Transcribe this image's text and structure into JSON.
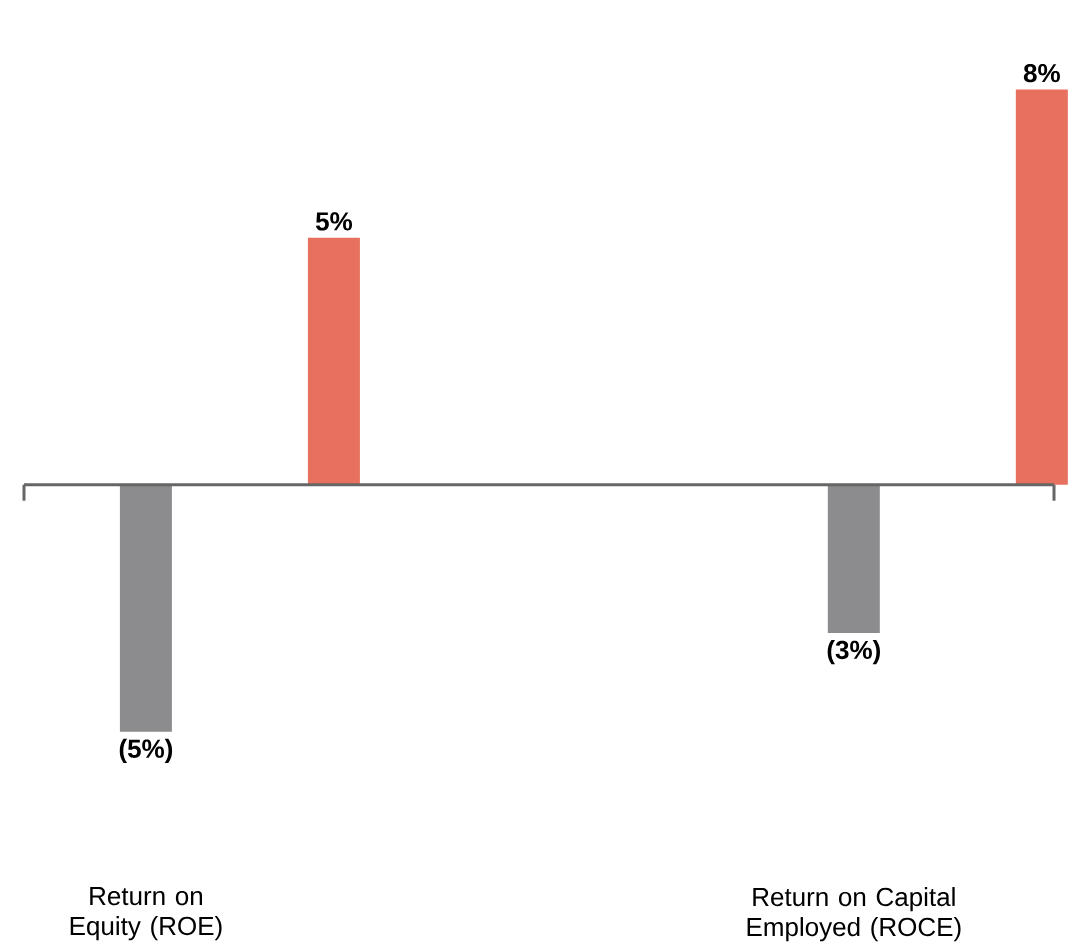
{
  "chart_data": {
    "type": "bar",
    "categories": [
      "Return on Equity (ROE)",
      "Return on Capital Employed (ROCE)"
    ],
    "series": [
      {
        "color": "#8c8c8e",
        "values": [
          -5,
          -3
        ],
        "value_labels": [
          "(5%)",
          "(3%)"
        ]
      },
      {
        "color": "#e8705e",
        "values": [
          5,
          8
        ],
        "value_labels": [
          "5%",
          "8%"
        ]
      }
    ]
  }
}
